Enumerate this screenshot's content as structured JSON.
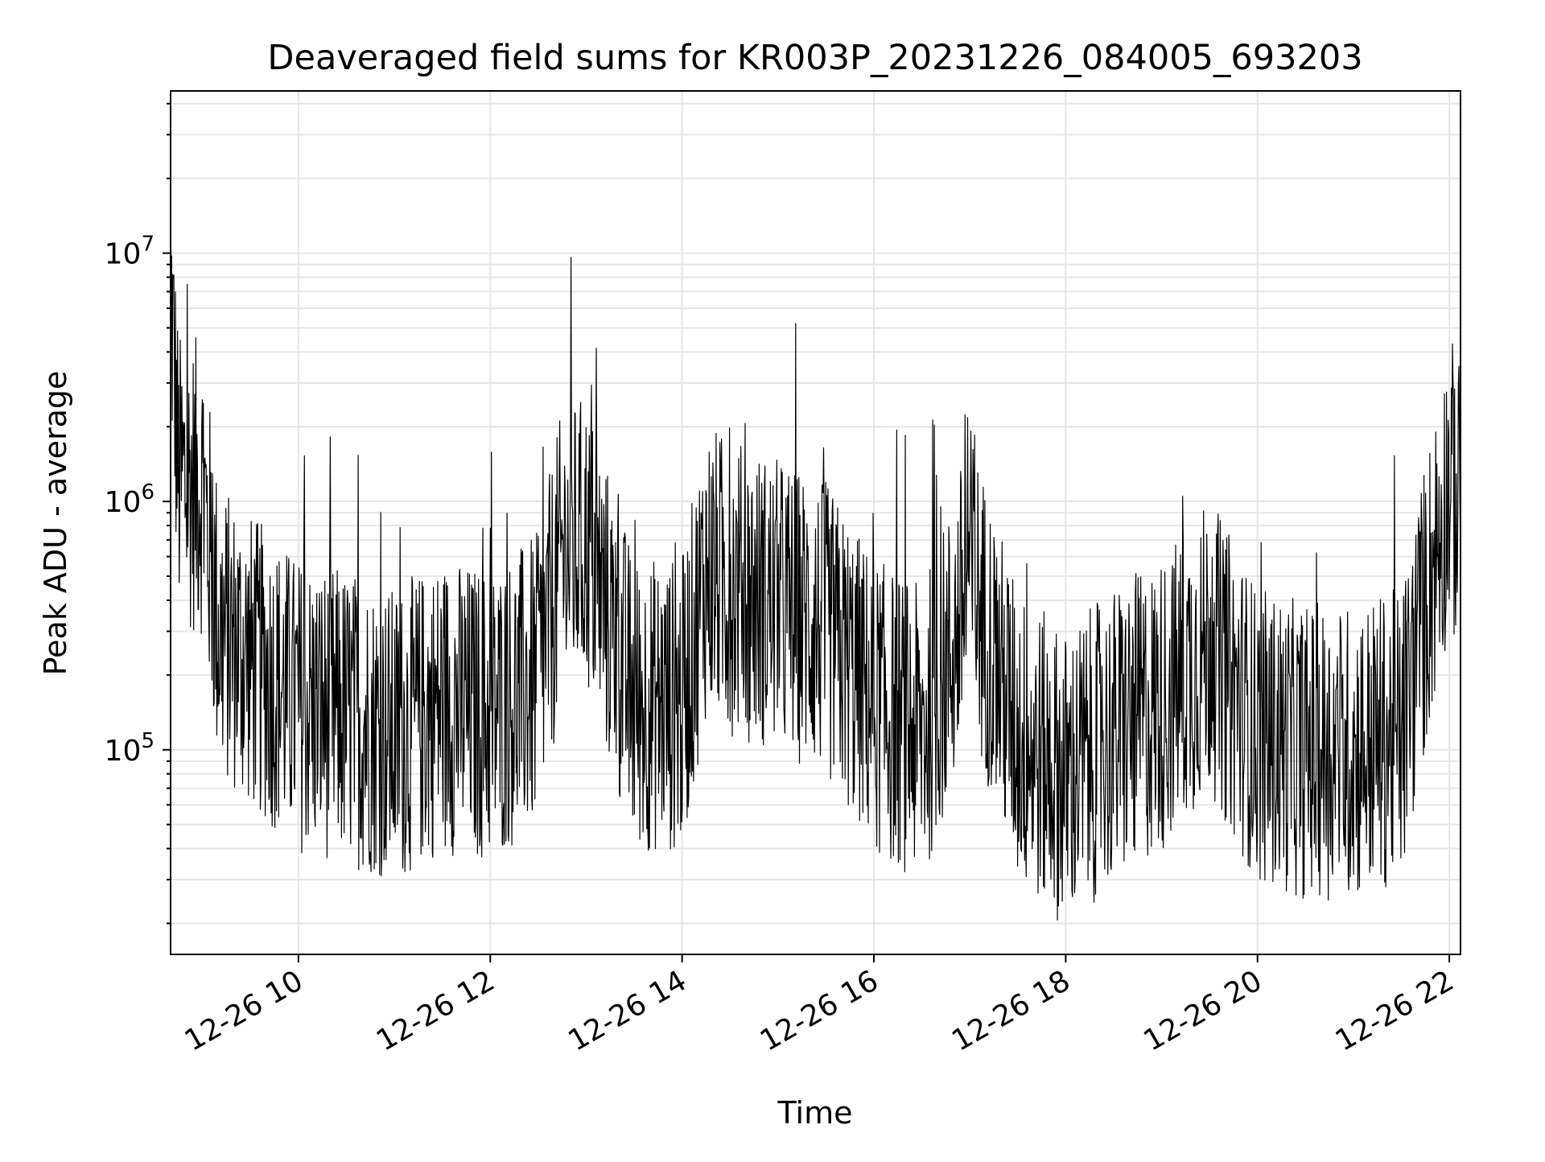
{
  "chart_data": {
    "type": "line",
    "title": "Deaveraged field sums for KR003P_20231226_084005_693203",
    "xlabel": "Time",
    "ylabel": "Peak ADU - average",
    "yscale": "log",
    "xlim": [
      "2023-12-26 08:40",
      "2023-12-26 22:07"
    ],
    "ylim": [
      15000,
      45000000
    ],
    "grid": true,
    "legend": "none",
    "line_color": "#000000",
    "grid_color": "#e6e6e6",
    "x_tick_labels": [
      "12-26 10",
      "12-26 12",
      "12-26 14",
      "12-26 16",
      "12-26 18",
      "12-26 20",
      "12-26 22"
    ],
    "y_tick_labels": [
      {
        "value": 100000,
        "base": "10",
        "exp": "5"
      },
      {
        "value": 1000000,
        "base": "10",
        "exp": "6"
      },
      {
        "value": 10000000,
        "base": "10",
        "exp": "7"
      }
    ],
    "series": [
      {
        "x": [
          "2023-12-26 08:40",
          "2023-12-26 08:45",
          "2023-12-26 09:00",
          "2023-12-26 09:10",
          "2023-12-26 09:30",
          "2023-12-26 10:00",
          "2023-12-26 10:30",
          "2023-12-26 11:00",
          "2023-12-26 11:30",
          "2023-12-26 12:00",
          "2023-12-26 12:30",
          "2023-12-26 12:45",
          "2023-12-26 13:00",
          "2023-12-26 13:30",
          "2023-12-26 14:00",
          "2023-12-26 14:15",
          "2023-12-26 14:30",
          "2023-12-26 15:00",
          "2023-12-26 15:30",
          "2023-12-26 16:00",
          "2023-12-26 16:30",
          "2023-12-26 16:50",
          "2023-12-26 17:00",
          "2023-12-26 17:10",
          "2023-12-26 17:30",
          "2023-12-26 18:00",
          "2023-12-26 18:30",
          "2023-12-26 19:00",
          "2023-12-26 19:30",
          "2023-12-26 20:00",
          "2023-12-26 20:30",
          "2023-12-26 21:00",
          "2023-12-26 21:30",
          "2023-12-26 21:45",
          "2023-12-26 22:00",
          "2023-12-26 22:07"
        ],
        "y": [
          10000000,
          1600000,
          1500000,
          400000,
          300000,
          200000,
          180000,
          150000,
          200000,
          180000,
          250000,
          800000,
          900000,
          200000,
          200000,
          700000,
          600000,
          500000,
          400000,
          200000,
          150000,
          350000,
          700000,
          400000,
          150000,
          100000,
          150000,
          200000,
          350000,
          150000,
          130000,
          130000,
          150000,
          500000,
          1600000,
          1200000
        ]
      }
    ]
  }
}
